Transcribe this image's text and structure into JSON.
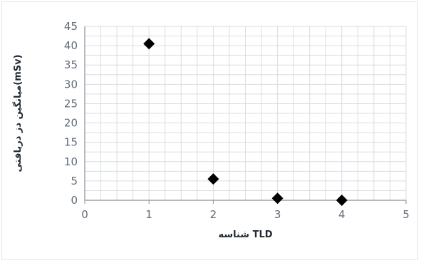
{
  "chart_data": {
    "type": "scatter",
    "title": "",
    "xlabel": "شناسه TLD",
    "ylabel": "میانگین دز دریافتی(mSv)",
    "xlim": [
      0,
      5
    ],
    "ylim": [
      0,
      45
    ],
    "x_ticks": [
      "0",
      "1",
      "2",
      "3",
      "4",
      "5"
    ],
    "y_ticks": [
      "0",
      "5",
      "10",
      "15",
      "20",
      "25",
      "30",
      "35",
      "40",
      "45"
    ],
    "grid": true,
    "legend": "none",
    "marker": "diamond",
    "colors": {
      "marker": "#000000",
      "grid": "#d9dde1",
      "axis": "#8a9099"
    },
    "series": [
      {
        "x": [
          1,
          2,
          3,
          4
        ],
        "y": [
          40.5,
          5.5,
          0.5,
          0.0
        ]
      }
    ]
  }
}
